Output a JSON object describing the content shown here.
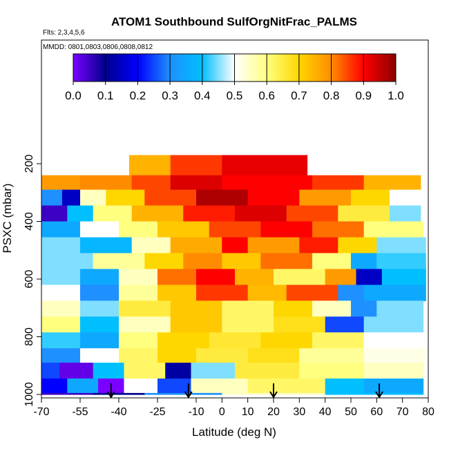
{
  "chart_data": {
    "type": "heatmap",
    "title": "ATOM1 Southbound SulfOrgNitFrac_PALMS",
    "subtitle_flights": "Flts: 2,3,4,5,6",
    "subtitle_dates": "MMDD: 0801,0803,0806,0808,0812",
    "xlabel": "Latitude (deg N)",
    "ylabel": "PSXC (mbar)",
    "xlim": [
      -70,
      80
    ],
    "ylim": [
      1000,
      30
    ],
    "x_ticks": [
      -70,
      -55,
      -40,
      -25,
      -10,
      0,
      10,
      20,
      30,
      40,
      50,
      60,
      70,
      80
    ],
    "y_ticks": [
      200,
      400,
      600,
      800,
      1000
    ],
    "colorbar": {
      "range": [
        0.0,
        1.0
      ],
      "ticks": [
        "0.0",
        "0.1",
        "0.2",
        "0.3",
        "0.4",
        "0.5",
        "0.6",
        "0.7",
        "0.8",
        "0.9",
        "1.0"
      ],
      "colors": [
        "#7a00ff",
        "#00008b",
        "#0000ff",
        "#1e90ff",
        "#00bfff",
        "#ffffff",
        "#ffff80",
        "#ffd700",
        "#ff8c00",
        "#ff0000",
        "#8b0000"
      ]
    },
    "flight_markers_lat": [
      -43,
      -13,
      20,
      61
    ],
    "layers": [
      {
        "p_top": 170,
        "p_bot": 240,
        "segments": [
          {
            "lat0": -36,
            "lat1": -20,
            "v": 0.75
          },
          {
            "lat0": -20,
            "lat1": 0,
            "v": 0.86
          },
          {
            "lat0": 0,
            "lat1": 33,
            "v": 0.92
          }
        ]
      },
      {
        "p_top": 240,
        "p_bot": 290,
        "segments": [
          {
            "lat0": -70,
            "lat1": -55,
            "v": 0.78
          },
          {
            "lat0": -55,
            "lat1": -35,
            "v": 0.8
          },
          {
            "lat0": -35,
            "lat1": -20,
            "v": 0.85
          },
          {
            "lat0": -20,
            "lat1": 0,
            "v": 0.93
          },
          {
            "lat0": 0,
            "lat1": 35,
            "v": 0.9
          },
          {
            "lat0": 35,
            "lat1": 55,
            "v": 0.86
          },
          {
            "lat0": 55,
            "lat1": 77,
            "v": 0.75
          }
        ]
      },
      {
        "p_top": 290,
        "p_bot": 345,
        "segments": [
          {
            "lat0": -70,
            "lat1": -62,
            "v": 0.3
          },
          {
            "lat0": -62,
            "lat1": -55,
            "v": 0.15
          },
          {
            "lat0": -55,
            "lat1": -45,
            "v": 0.55
          },
          {
            "lat0": -45,
            "lat1": -30,
            "v": 0.7
          },
          {
            "lat0": -30,
            "lat1": -10,
            "v": 0.85
          },
          {
            "lat0": -10,
            "lat1": 10,
            "v": 0.97
          },
          {
            "lat0": 10,
            "lat1": 30,
            "v": 0.9
          },
          {
            "lat0": 30,
            "lat1": 50,
            "v": 0.78
          },
          {
            "lat0": 50,
            "lat1": 65,
            "v": 0.7
          },
          {
            "lat0": 65,
            "lat1": 77,
            "v": 0.5
          }
        ]
      },
      {
        "p_top": 345,
        "p_bot": 400,
        "segments": [
          {
            "lat0": -70,
            "lat1": -60,
            "v": 0.05
          },
          {
            "lat0": -60,
            "lat1": -50,
            "v": 0.4
          },
          {
            "lat0": -50,
            "lat1": -35,
            "v": 0.6
          },
          {
            "lat0": -35,
            "lat1": -15,
            "v": 0.75
          },
          {
            "lat0": -15,
            "lat1": 5,
            "v": 0.88
          },
          {
            "lat0": 5,
            "lat1": 25,
            "v": 0.93
          },
          {
            "lat0": 25,
            "lat1": 45,
            "v": 0.85
          },
          {
            "lat0": 45,
            "lat1": 65,
            "v": 0.65
          },
          {
            "lat0": 65,
            "lat1": 77,
            "v": 0.45
          }
        ]
      },
      {
        "p_top": 400,
        "p_bot": 455,
        "segments": [
          {
            "lat0": -70,
            "lat1": -55,
            "v": 0.35
          },
          {
            "lat0": -55,
            "lat1": -40,
            "v": 0.5
          },
          {
            "lat0": -40,
            "lat1": -25,
            "v": 0.6
          },
          {
            "lat0": -25,
            "lat1": -5,
            "v": 0.72
          },
          {
            "lat0": -5,
            "lat1": 15,
            "v": 0.85
          },
          {
            "lat0": 15,
            "lat1": 35,
            "v": 0.9
          },
          {
            "lat0": 35,
            "lat1": 55,
            "v": 0.82
          },
          {
            "lat0": 55,
            "lat1": 78,
            "v": 0.6
          }
        ]
      },
      {
        "p_top": 455,
        "p_bot": 510,
        "segments": [
          {
            "lat0": -70,
            "lat1": -55,
            "v": 0.45
          },
          {
            "lat0": -55,
            "lat1": -35,
            "v": 0.38
          },
          {
            "lat0": -35,
            "lat1": -20,
            "v": 0.55
          },
          {
            "lat0": -20,
            "lat1": 0,
            "v": 0.76
          },
          {
            "lat0": 0,
            "lat1": 10,
            "v": 0.9
          },
          {
            "lat0": 10,
            "lat1": 30,
            "v": 0.78
          },
          {
            "lat0": 30,
            "lat1": 45,
            "v": 0.88
          },
          {
            "lat0": 45,
            "lat1": 60,
            "v": 0.7
          },
          {
            "lat0": 60,
            "lat1": 79,
            "v": 0.45
          }
        ]
      },
      {
        "p_top": 510,
        "p_bot": 565,
        "segments": [
          {
            "lat0": -70,
            "lat1": -50,
            "v": 0.45
          },
          {
            "lat0": -50,
            "lat1": -30,
            "v": 0.58
          },
          {
            "lat0": -30,
            "lat1": -15,
            "v": 0.7
          },
          {
            "lat0": -15,
            "lat1": 0,
            "v": 0.8
          },
          {
            "lat0": 0,
            "lat1": 15,
            "v": 0.72
          },
          {
            "lat0": 15,
            "lat1": 35,
            "v": 0.82
          },
          {
            "lat0": 35,
            "lat1": 50,
            "v": 0.6
          },
          {
            "lat0": 50,
            "lat1": 60,
            "v": 0.35
          },
          {
            "lat0": 60,
            "lat1": 79,
            "v": 0.42
          }
        ]
      },
      {
        "p_top": 565,
        "p_bot": 620,
        "segments": [
          {
            "lat0": -70,
            "lat1": -55,
            "v": 0.45
          },
          {
            "lat0": -55,
            "lat1": -40,
            "v": 0.35
          },
          {
            "lat0": -40,
            "lat1": -25,
            "v": 0.55
          },
          {
            "lat0": -25,
            "lat1": -10,
            "v": 0.82
          },
          {
            "lat0": -10,
            "lat1": 5,
            "v": 0.9
          },
          {
            "lat0": 5,
            "lat1": 20,
            "v": 0.75
          },
          {
            "lat0": 20,
            "lat1": 40,
            "v": 0.62
          },
          {
            "lat0": 40,
            "lat1": 52,
            "v": 0.78
          },
          {
            "lat0": 52,
            "lat1": 62,
            "v": 0.15
          },
          {
            "lat0": 62,
            "lat1": 79,
            "v": 0.4
          }
        ]
      },
      {
        "p_top": 620,
        "p_bot": 675,
        "segments": [
          {
            "lat0": -70,
            "lat1": -55,
            "v": 0.5
          },
          {
            "lat0": -55,
            "lat1": -40,
            "v": 0.3
          },
          {
            "lat0": -40,
            "lat1": -25,
            "v": 0.58
          },
          {
            "lat0": -25,
            "lat1": -10,
            "v": 0.72
          },
          {
            "lat0": -10,
            "lat1": 10,
            "v": 0.86
          },
          {
            "lat0": 10,
            "lat1": 25,
            "v": 0.74
          },
          {
            "lat0": 25,
            "lat1": 45,
            "v": 0.85
          },
          {
            "lat0": 45,
            "lat1": 55,
            "v": 0.3
          },
          {
            "lat0": 55,
            "lat1": 79,
            "v": 0.35
          }
        ]
      },
      {
        "p_top": 675,
        "p_bot": 730,
        "segments": [
          {
            "lat0": -70,
            "lat1": -55,
            "v": 0.55
          },
          {
            "lat0": -55,
            "lat1": -40,
            "v": 0.45
          },
          {
            "lat0": -40,
            "lat1": -20,
            "v": 0.65
          },
          {
            "lat0": -20,
            "lat1": 0,
            "v": 0.72
          },
          {
            "lat0": 0,
            "lat1": 20,
            "v": 0.62
          },
          {
            "lat0": 20,
            "lat1": 35,
            "v": 0.7
          },
          {
            "lat0": 35,
            "lat1": 50,
            "v": 0.55
          },
          {
            "lat0": 50,
            "lat1": 60,
            "v": 0.3
          },
          {
            "lat0": 60,
            "lat1": 78,
            "v": 0.45
          }
        ]
      },
      {
        "p_top": 730,
        "p_bot": 785,
        "segments": [
          {
            "lat0": -70,
            "lat1": -55,
            "v": 0.6
          },
          {
            "lat0": -55,
            "lat1": -40,
            "v": 0.4
          },
          {
            "lat0": -40,
            "lat1": -20,
            "v": 0.55
          },
          {
            "lat0": -20,
            "lat1": 0,
            "v": 0.72
          },
          {
            "lat0": 0,
            "lat1": 20,
            "v": 0.62
          },
          {
            "lat0": 20,
            "lat1": 40,
            "v": 0.68
          },
          {
            "lat0": 40,
            "lat1": 55,
            "v": 0.25
          },
          {
            "lat0": 55,
            "lat1": 78,
            "v": 0.45
          }
        ]
      },
      {
        "p_top": 785,
        "p_bot": 840,
        "segments": [
          {
            "lat0": -70,
            "lat1": -55,
            "v": 0.42
          },
          {
            "lat0": -55,
            "lat1": -40,
            "v": 0.35
          },
          {
            "lat0": -40,
            "lat1": -25,
            "v": 0.6
          },
          {
            "lat0": -25,
            "lat1": -5,
            "v": 0.7
          },
          {
            "lat0": -5,
            "lat1": 15,
            "v": 0.66
          },
          {
            "lat0": 15,
            "lat1": 35,
            "v": 0.7
          },
          {
            "lat0": 35,
            "lat1": 55,
            "v": 0.62
          },
          {
            "lat0": 55,
            "lat1": 79,
            "v": 0.5
          }
        ]
      },
      {
        "p_top": 840,
        "p_bot": 890,
        "segments": [
          {
            "lat0": -70,
            "lat1": -55,
            "v": 0.3
          },
          {
            "lat0": -55,
            "lat1": -40,
            "v": 0.5
          },
          {
            "lat0": -40,
            "lat1": -25,
            "v": 0.62
          },
          {
            "lat0": -25,
            "lat1": -10,
            "v": 0.7
          },
          {
            "lat0": -10,
            "lat1": 10,
            "v": 0.65
          },
          {
            "lat0": 10,
            "lat1": 30,
            "v": 0.68
          },
          {
            "lat0": 30,
            "lat1": 55,
            "v": 0.58
          },
          {
            "lat0": 55,
            "lat1": 79,
            "v": 0.52
          }
        ]
      },
      {
        "p_top": 890,
        "p_bot": 945,
        "segments": [
          {
            "lat0": -70,
            "lat1": -63,
            "v": 0.25
          },
          {
            "lat0": -63,
            "lat1": -50,
            "v": 0.02
          },
          {
            "lat0": -50,
            "lat1": -38,
            "v": 0.4
          },
          {
            "lat0": -38,
            "lat1": -22,
            "v": 0.62
          },
          {
            "lat0": -22,
            "lat1": -12,
            "v": 0.12
          },
          {
            "lat0": -12,
            "lat1": 5,
            "v": 0.45
          },
          {
            "lat0": 5,
            "lat1": 30,
            "v": 0.65
          },
          {
            "lat0": 30,
            "lat1": 55,
            "v": 0.6
          },
          {
            "lat0": 55,
            "lat1": 78,
            "v": 0.55
          }
        ]
      },
      {
        "p_top": 945,
        "p_bot": 995,
        "segments": [
          {
            "lat0": -70,
            "lat1": -60,
            "v": 0.2
          },
          {
            "lat0": -60,
            "lat1": -48,
            "v": 0.35
          },
          {
            "lat0": -48,
            "lat1": -38,
            "v": 0.0
          },
          {
            "lat0": -38,
            "lat1": -25,
            "v": 0.5
          },
          {
            "lat0": -25,
            "lat1": -12,
            "v": 0.25
          },
          {
            "lat0": -12,
            "lat1": 10,
            "v": 0.55
          },
          {
            "lat0": 10,
            "lat1": 40,
            "v": 0.62
          },
          {
            "lat0": 40,
            "lat1": 55,
            "v": 0.4
          },
          {
            "lat0": 55,
            "lat1": 78,
            "v": 0.35
          }
        ]
      },
      {
        "p_top": 995,
        "p_bot": 1000,
        "segments": [
          {
            "lat0": -70,
            "lat1": -50,
            "v": 0.05
          },
          {
            "lat0": -50,
            "lat1": -30,
            "v": 0.1
          },
          {
            "lat0": -30,
            "lat1": 0,
            "v": 0.3
          },
          {
            "lat0": 0,
            "lat1": 40,
            "v": 0.55
          },
          {
            "lat0": 40,
            "lat1": 78,
            "v": 0.4
          }
        ]
      }
    ]
  }
}
